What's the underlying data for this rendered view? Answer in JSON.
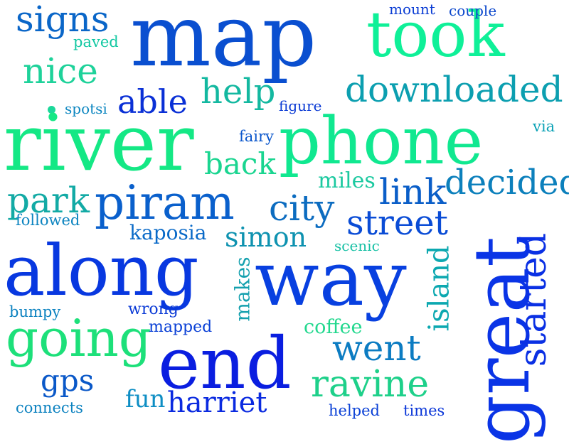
{
  "words": [
    {
      "text": "map",
      "color": "#0a4fd0"
    },
    {
      "text": "took",
      "color": "#0ff098"
    },
    {
      "text": "river",
      "color": "#14e885"
    },
    {
      "text": "phone",
      "color": "#10e890"
    },
    {
      "text": "along",
      "color": "#0838e0"
    },
    {
      "text": "way",
      "color": "#0840e0"
    },
    {
      "text": "great",
      "color": "#0a34e6"
    },
    {
      "text": "end",
      "color": "#0a1ee0"
    },
    {
      "text": "signs",
      "color": "#0a66c8"
    },
    {
      "text": "nice",
      "color": "#1ed29a"
    },
    {
      "text": "able",
      "color": "#0a30d6"
    },
    {
      "text": "help",
      "color": "#13b8a0"
    },
    {
      "text": "downloaded",
      "color": "#0c9fb0"
    },
    {
      "text": "piram",
      "color": "#0a60cc"
    },
    {
      "text": "park",
      "color": "#13aaa5"
    },
    {
      "text": "back",
      "color": "#1ad590"
    },
    {
      "text": "city",
      "color": "#0c6cc0"
    },
    {
      "text": "link",
      "color": "#0a5ec8"
    },
    {
      "text": "decided",
      "color": "#0c80bc"
    },
    {
      "text": "street",
      "color": "#0a4cd6"
    },
    {
      "text": "going",
      "color": "#1de07a"
    },
    {
      "text": "went",
      "color": "#0c7cc2"
    },
    {
      "text": "ravine",
      "color": "#1ed08a"
    },
    {
      "text": "started",
      "color": "#0a30e4"
    },
    {
      "text": "island",
      "color": "#0ca8b0"
    },
    {
      "text": "harriet",
      "color": "#0a2ae0"
    },
    {
      "text": "gps",
      "color": "#0a58c8"
    },
    {
      "text": "simon",
      "color": "#0e92b0"
    },
    {
      "text": "kaposia",
      "color": "#0a6ac8"
    },
    {
      "text": "miles",
      "color": "#1cc9a0"
    },
    {
      "text": "makes",
      "color": "#14a0ae"
    },
    {
      "text": "coffee",
      "color": "#22d88e"
    },
    {
      "text": "fun",
      "color": "#0e8ec4"
    },
    {
      "text": "mount",
      "color": "#0a3cd4"
    },
    {
      "text": "couple",
      "color": "#0a46cc"
    },
    {
      "text": "paved",
      "color": "#12c8a2"
    },
    {
      "text": "spotsi",
      "color": "#0c86c0"
    },
    {
      "text": "figure",
      "color": "#0a3ad4"
    },
    {
      "text": "fairy",
      "color": "#0a56cc"
    },
    {
      "text": "via",
      "color": "#0ca2b6"
    },
    {
      "text": "followed",
      "color": "#0c84c0"
    },
    {
      "text": "scenic",
      "color": "#16c0a4"
    },
    {
      "text": "bumpy",
      "color": "#0c82c0"
    },
    {
      "text": "wrong",
      "color": "#0a3ad6"
    },
    {
      "text": "mapped",
      "color": "#0a40d6"
    },
    {
      "text": "connects",
      "color": "#0c82c0"
    },
    {
      "text": "helped",
      "color": "#0a40d6"
    },
    {
      "text": "times",
      "color": "#0a36d8"
    }
  ],
  "dot_color": "#1cd89a"
}
